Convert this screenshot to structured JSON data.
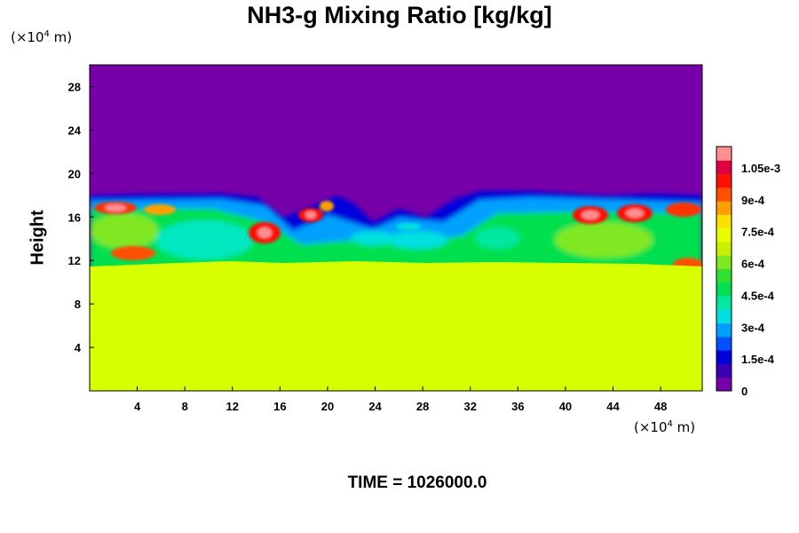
{
  "chart_data": {
    "type": "heatmap",
    "title": "NH3-g Mixing Ratio [kg/kg]",
    "ylabel": "Height",
    "xlabel": "",
    "y_unit_prefix": "(×10",
    "y_unit_exp": "4",
    "y_unit_suffix": " m)",
    "x_unit_prefix": "(×10",
    "x_unit_exp": "4",
    "x_unit_suffix": " m)",
    "xlim": [
      0,
      51.5
    ],
    "ylim": [
      0,
      30
    ],
    "x_ticks": [
      "4",
      "8",
      "12",
      "16",
      "20",
      "24",
      "28",
      "32",
      "36",
      "40",
      "44",
      "48"
    ],
    "y_ticks": [
      "4",
      "8",
      "12",
      "16",
      "20",
      "24",
      "28"
    ],
    "x_tick_values": [
      4,
      8,
      12,
      16,
      20,
      24,
      28,
      32,
      36,
      40,
      44,
      48
    ],
    "y_tick_values": [
      4,
      8,
      12,
      16,
      20,
      24,
      28
    ],
    "colorbar": {
      "ticks": [
        "0",
        "1.5e-4",
        "3e-4",
        "4.5e-4",
        "6e-4",
        "7.5e-4",
        "9e-4",
        "1.05e-3"
      ],
      "tick_values": [
        0,
        0.00015,
        0.0003,
        0.00045,
        0.0006,
        0.00075,
        0.0009,
        0.00105
      ],
      "range": [
        0,
        0.00115
      ],
      "colors": [
        "#7800a8",
        "#3c00b4",
        "#0000dc",
        "#0050ff",
        "#00a0ff",
        "#00e0e0",
        "#00e8a0",
        "#00e050",
        "#30e030",
        "#80e820",
        "#c8f000",
        "#e8ff00",
        "#ffe000",
        "#ffa000",
        "#ff5000",
        "#ff1000",
        "#e00040",
        "#ff9090"
      ]
    },
    "field_summary": {
      "lower_layer_top": 11.5,
      "lower_layer_value": 0.00078,
      "upper_layer_base": 18,
      "upper_layer_value": 0
    },
    "annotation": "TIME = 1026000.0"
  }
}
